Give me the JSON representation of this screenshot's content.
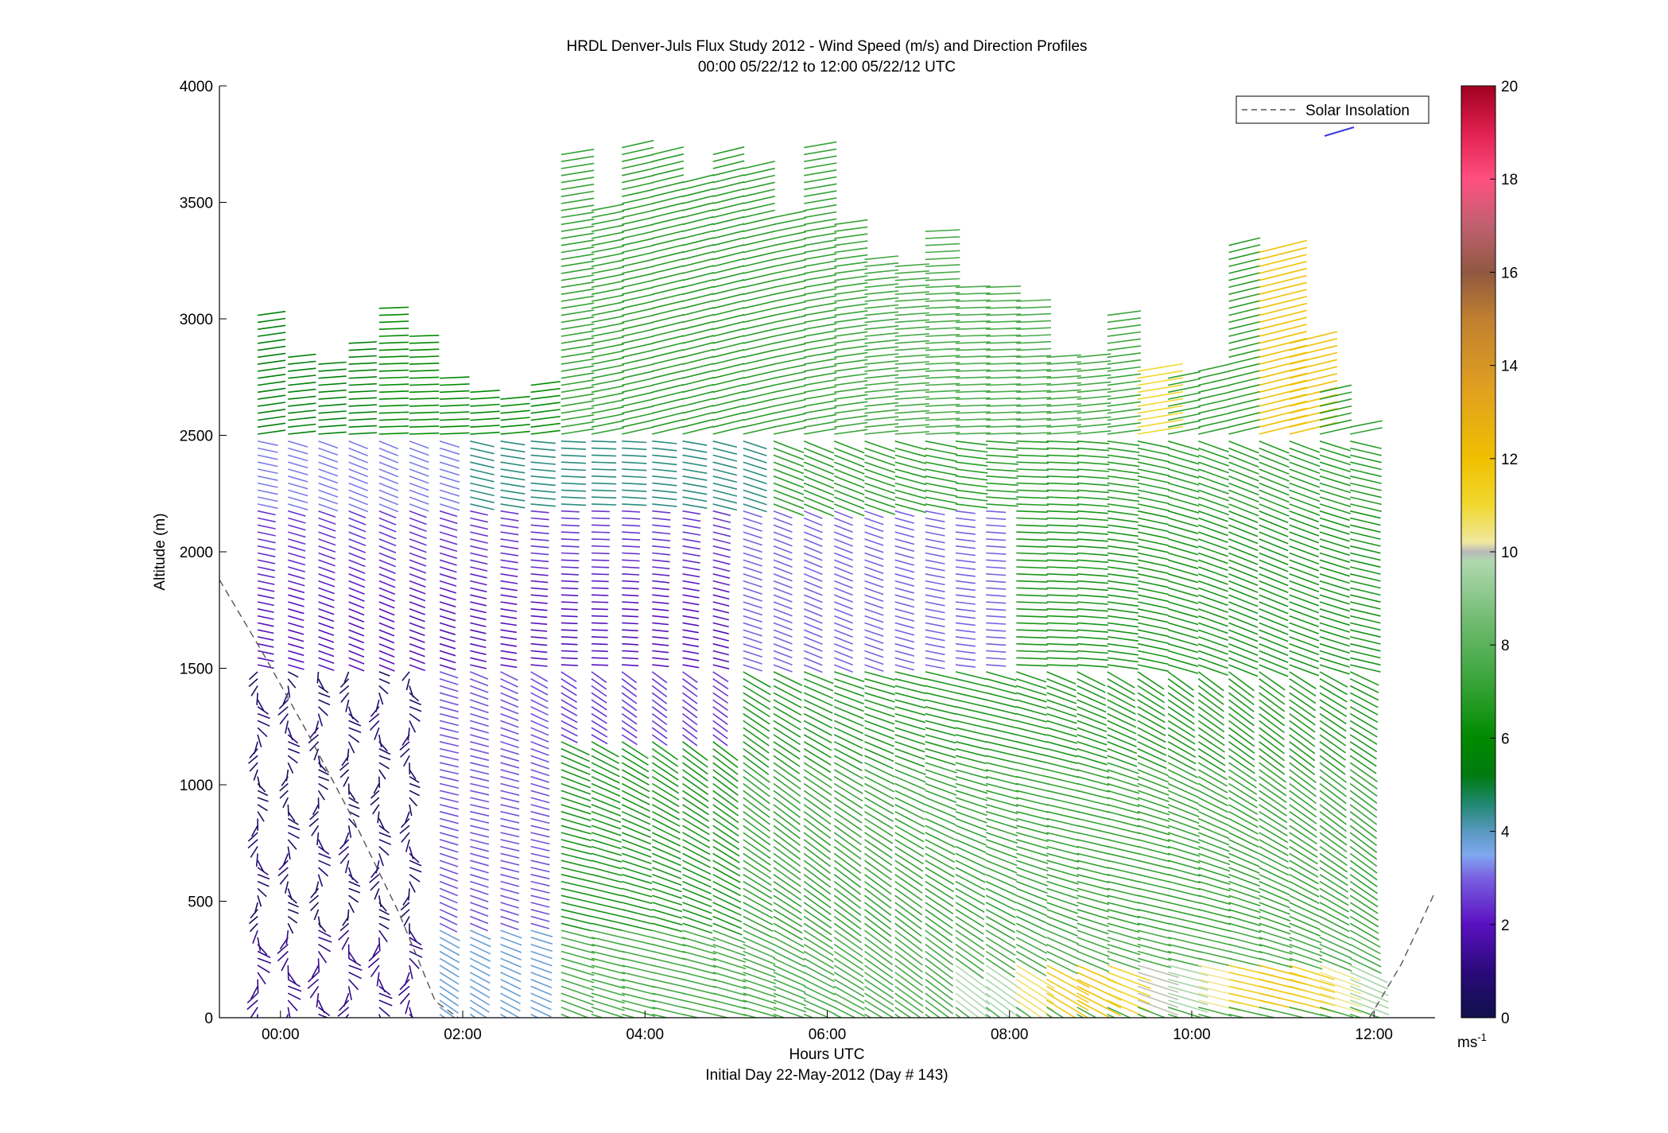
{
  "chart_data": {
    "type": "vector-profile",
    "title": "HRDL Denver-Juls Flux Study 2012 - Wind Speed (m/s) and Direction Profiles",
    "subtitle": "00:00 05/22/12 to 12:00 05/22/12  UTC",
    "xlabel": "Hours UTC",
    "xlabel2": "Initial Day 22-May-2012 (Day # 143)",
    "ylabel": "Altitude (m)",
    "xlim_hours": [
      -0.67,
      12.67
    ],
    "ylim": [
      0,
      4000
    ],
    "x_ticks": [
      {
        "value": 0,
        "label": "00:00"
      },
      {
        "value": 2,
        "label": "02:00"
      },
      {
        "value": 4,
        "label": "04:00"
      },
      {
        "value": 6,
        "label": "06:00"
      },
      {
        "value": 8,
        "label": "08:00"
      },
      {
        "value": 10,
        "label": "10:00"
      },
      {
        "value": 12,
        "label": "12:00"
      }
    ],
    "y_ticks": [
      {
        "value": 0,
        "label": "0"
      },
      {
        "value": 500,
        "label": "500"
      },
      {
        "value": 1000,
        "label": "1000"
      },
      {
        "value": 1500,
        "label": "1500"
      },
      {
        "value": 2000,
        "label": "2000"
      },
      {
        "value": 2500,
        "label": "2500"
      },
      {
        "value": 3000,
        "label": "3000"
      },
      {
        "value": 3500,
        "label": "3500"
      },
      {
        "value": 4000,
        "label": "4000"
      }
    ],
    "colorbar": {
      "range": [
        0,
        20
      ],
      "unit_label": "ms",
      "unit_exp": "-1",
      "ticks": [
        {
          "value": 0,
          "label": "0"
        },
        {
          "value": 2,
          "label": "2"
        },
        {
          "value": 4,
          "label": "4"
        },
        {
          "value": 6,
          "label": "6"
        },
        {
          "value": 8,
          "label": "8"
        },
        {
          "value": 10,
          "label": "10"
        },
        {
          "value": 12,
          "label": "12"
        },
        {
          "value": 14,
          "label": "14"
        },
        {
          "value": 16,
          "label": "16"
        },
        {
          "value": 18,
          "label": "18"
        },
        {
          "value": 20,
          "label": "20"
        }
      ],
      "stops": [
        {
          "value": 0,
          "color": "#10104a"
        },
        {
          "value": 1,
          "color": "#2a0a7a"
        },
        {
          "value": 2,
          "color": "#5a10c0"
        },
        {
          "value": 3,
          "color": "#7a60e0"
        },
        {
          "value": 3.5,
          "color": "#80a8f0"
        },
        {
          "value": 4,
          "color": "#5898c0"
        },
        {
          "value": 4.6,
          "color": "#208870"
        },
        {
          "value": 5.2,
          "color": "#007a10"
        },
        {
          "value": 6,
          "color": "#008a00"
        },
        {
          "value": 7,
          "color": "#30a030"
        },
        {
          "value": 8.5,
          "color": "#70bb70"
        },
        {
          "value": 9.8,
          "color": "#b0d8b0"
        },
        {
          "value": 10,
          "color": "#b8b8b8"
        },
        {
          "value": 10.2,
          "color": "#f0e8a0"
        },
        {
          "value": 11,
          "color": "#f0d830"
        },
        {
          "value": 12,
          "color": "#f0c000"
        },
        {
          "value": 13.5,
          "color": "#e0a020"
        },
        {
          "value": 15,
          "color": "#c08030"
        },
        {
          "value": 16,
          "color": "#905840"
        },
        {
          "value": 17,
          "color": "#c06070"
        },
        {
          "value": 18,
          "color": "#ff5080"
        },
        {
          "value": 19,
          "color": "#e02050"
        },
        {
          "value": 20,
          "color": "#a00020"
        }
      ]
    },
    "legend": {
      "label": "Solar Insolation",
      "placement": "top-right",
      "line_style": "dashed",
      "line_color": "#555555"
    },
    "solar_insolation": {
      "style": "dashed",
      "points": [
        {
          "hour": -0.67,
          "alt": 1880
        },
        {
          "hour": -0.2,
          "alt": 1570
        },
        {
          "hour": 0.3,
          "alt": 1220
        },
        {
          "hour": 0.8,
          "alt": 850
        },
        {
          "hour": 1.3,
          "alt": 450
        },
        {
          "hour": 1.7,
          "alt": 70
        },
        {
          "hour": 1.95,
          "alt": 0
        }
      ],
      "points_end": [
        {
          "hour": 11.95,
          "alt": 0
        },
        {
          "hour": 12.3,
          "alt": 230
        },
        {
          "hour": 12.67,
          "alt": 540
        }
      ]
    },
    "profiles": {
      "start_hour": -0.25,
      "step_hours": 0.333,
      "count": 37,
      "gate_spacing_m": 30,
      "top_alt_m": [
        3030,
        2860,
        2820,
        2920,
        3070,
        2940,
        2750,
        2700,
        2680,
        2740,
        3730,
        3480,
        3750,
        3720,
        3600,
        3720,
        3660,
        3450,
        3760,
        3410,
        3270,
        3250,
        3400,
        3160,
        3160,
        3100,
        2860,
        2850,
        3030,
        2800,
        2750,
        2800,
        3340,
        3310,
        2900,
        2690,
        2560
      ],
      "shaft_length_m": 330,
      "speed_notes": "Speeds read from color: near 0-1 m/s below 1.5 km before 02:00, 2-4 m/s between 1.5-2.3 km, 6-8 m/s above 2.5 km; later hours 6-9 m/s through the column with 10-13 m/s near-surface jet after 08:00 and at the top of columns near 11:00."
    }
  }
}
